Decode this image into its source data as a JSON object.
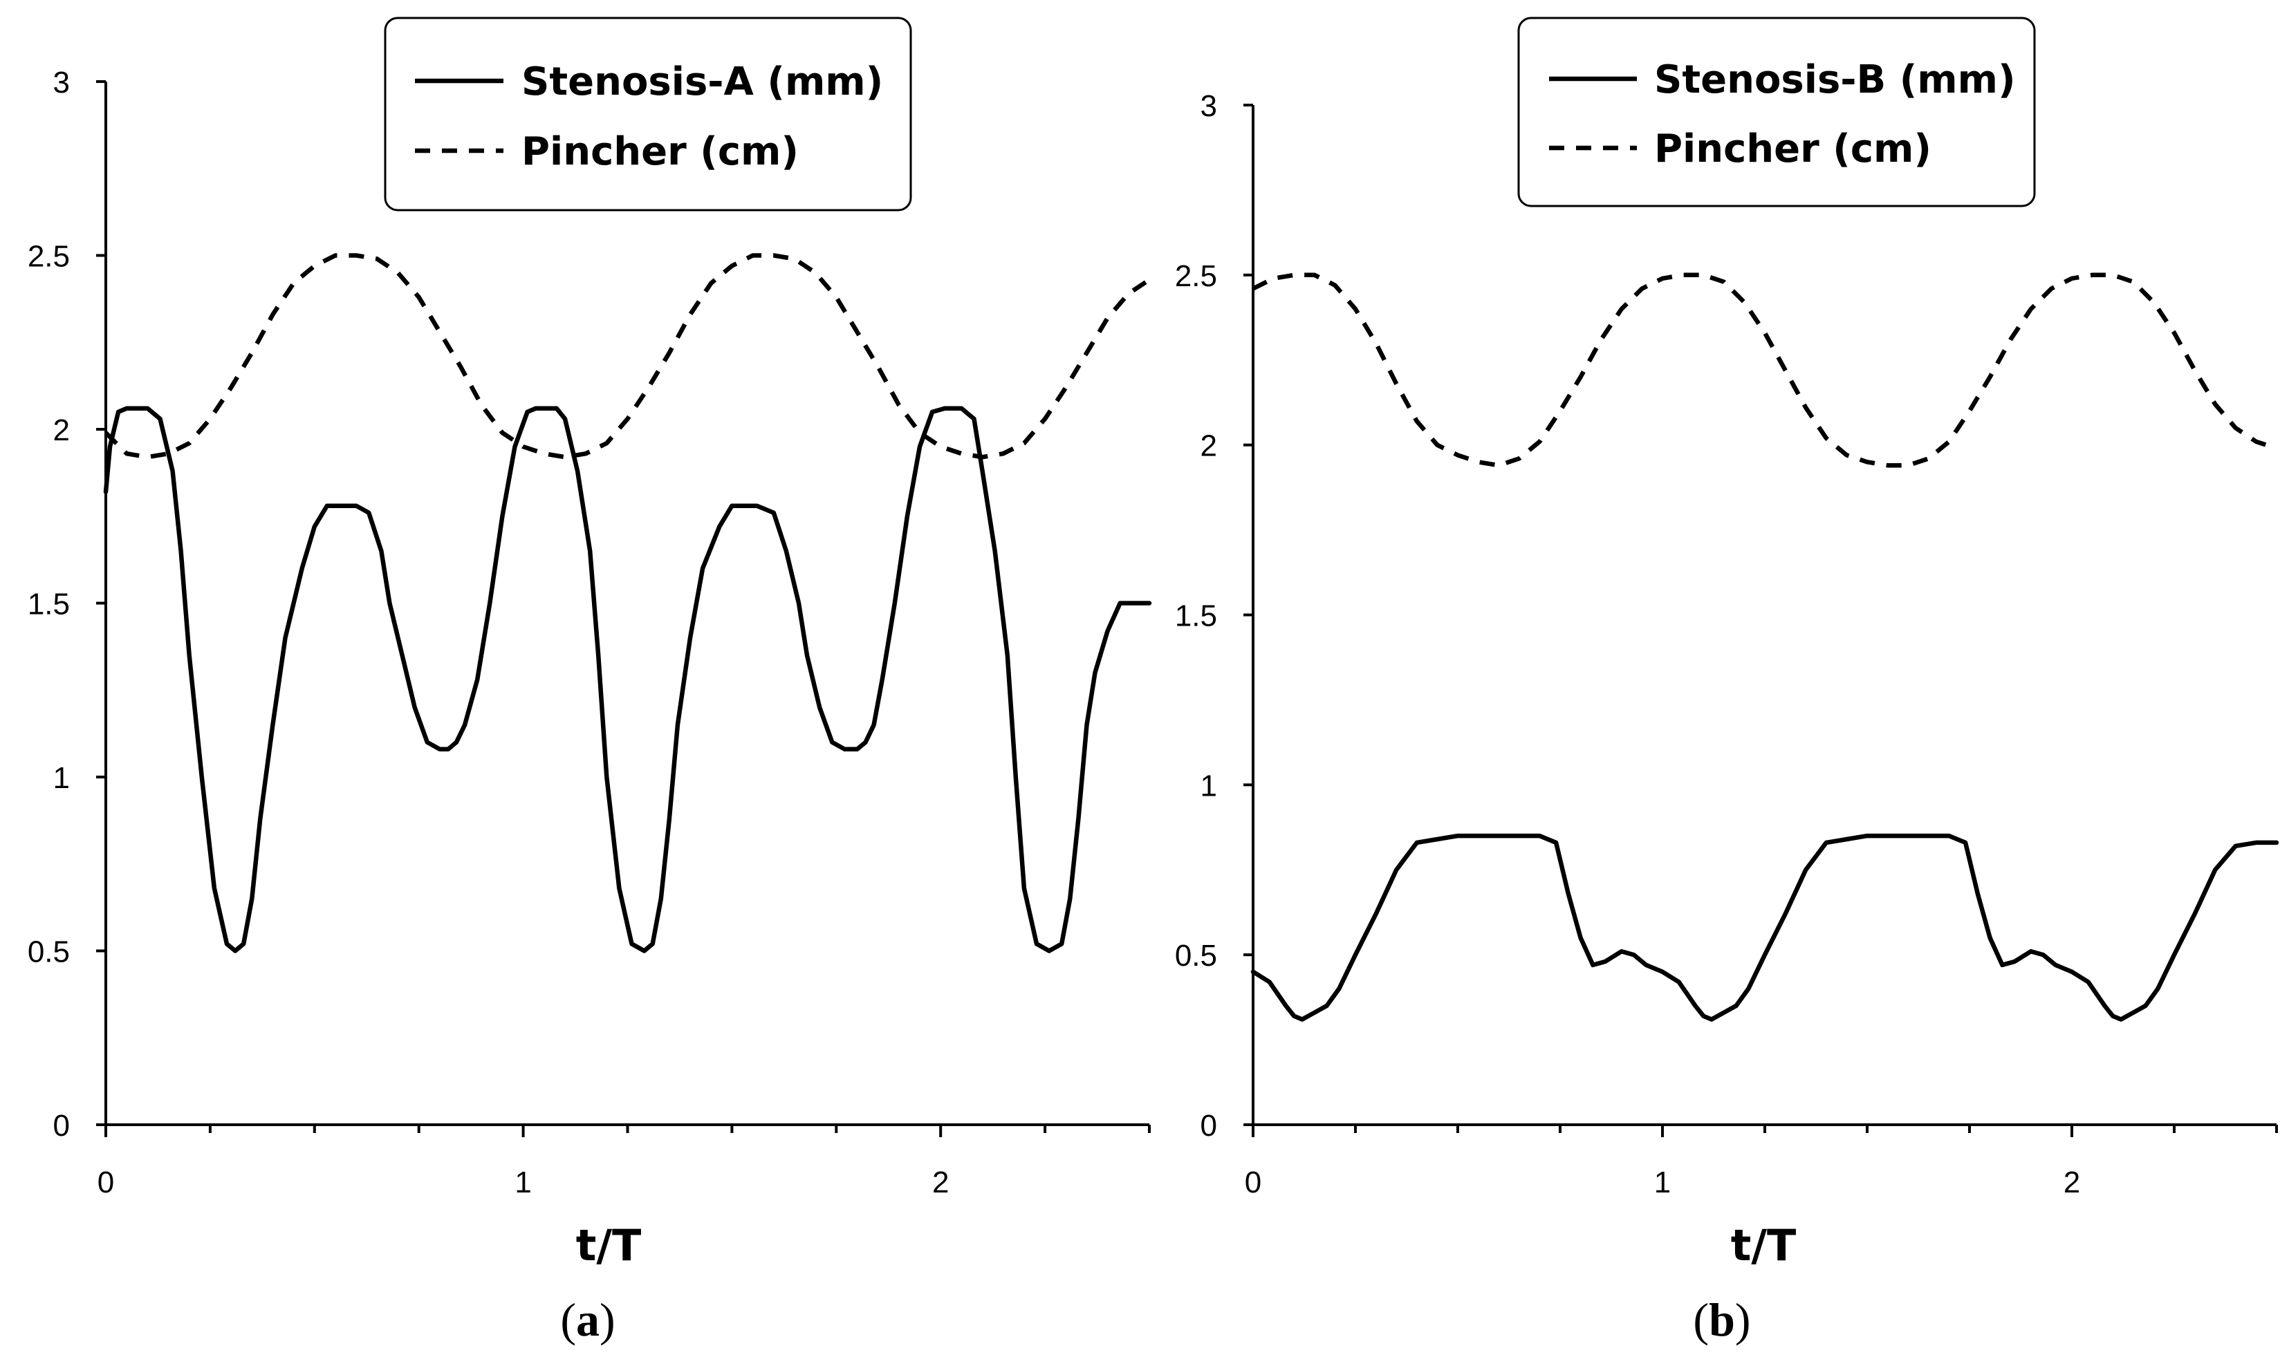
{
  "chart_data": [
    {
      "type": "line",
      "caption_letter": "a",
      "xlabel": "t/T",
      "ylabel": "",
      "xlim": [
        0,
        2.5
      ],
      "ylim": [
        0,
        3
      ],
      "x_ticks": [
        "0",
        "1",
        "2"
      ],
      "x_tick_values": [
        0,
        1,
        2
      ],
      "y_ticks": [
        "0",
        "0.5",
        "1",
        "1.5",
        "2",
        "2.5",
        "3"
      ],
      "y_tick_values": [
        0,
        0.5,
        1,
        1.5,
        2,
        2.5,
        3
      ],
      "legend_position": "top-right",
      "series": [
        {
          "name": "Stenosis-A (mm)",
          "style": "solid",
          "x": [
            0,
            0.01,
            0.03,
            0.05,
            0.08,
            0.1,
            0.13,
            0.16,
            0.18,
            0.2,
            0.23,
            0.26,
            0.29,
            0.31,
            0.33,
            0.35,
            0.37,
            0.4,
            0.43,
            0.47,
            0.5,
            0.53,
            0.56,
            0.6,
            0.63,
            0.66,
            0.68,
            0.71,
            0.74,
            0.77,
            0.8,
            0.82,
            0.84,
            0.86,
            0.89,
            0.92,
            0.95,
            0.98,
            1.01,
            1.03,
            1.05,
            1.08,
            1.1,
            1.13,
            1.16,
            1.18,
            1.2,
            1.23,
            1.26,
            1.29,
            1.31,
            1.33,
            1.35,
            1.37,
            1.4,
            1.43,
            1.47,
            1.5,
            1.53,
            1.56,
            1.6,
            1.63,
            1.66,
            1.68,
            1.71,
            1.74,
            1.77,
            1.8,
            1.82,
            1.84,
            1.86,
            1.89,
            1.92,
            1.95,
            1.98,
            2.01,
            2.03,
            2.05,
            2.08,
            2.1,
            2.13,
            2.16,
            2.18,
            2.2,
            2.23,
            2.26,
            2.29,
            2.31,
            2.33,
            2.35,
            2.37,
            2.4,
            2.43,
            2.47,
            2.5
          ],
          "y": [
            1.82,
            1.95,
            2.05,
            2.06,
            2.06,
            2.06,
            2.03,
            1.88,
            1.65,
            1.35,
            1.0,
            0.68,
            0.52,
            0.5,
            0.52,
            0.65,
            0.88,
            1.15,
            1.4,
            1.6,
            1.72,
            1.78,
            1.78,
            1.78,
            1.76,
            1.65,
            1.5,
            1.35,
            1.2,
            1.1,
            1.08,
            1.08,
            1.1,
            1.15,
            1.28,
            1.5,
            1.75,
            1.95,
            2.05,
            2.06,
            2.06,
            2.06,
            2.03,
            1.88,
            1.65,
            1.35,
            1.0,
            0.68,
            0.52,
            0.5,
            0.52,
            0.65,
            0.88,
            1.15,
            1.4,
            1.6,
            1.72,
            1.78,
            1.78,
            1.78,
            1.76,
            1.65,
            1.5,
            1.35,
            1.2,
            1.1,
            1.08,
            1.08,
            1.1,
            1.15,
            1.28,
            1.5,
            1.75,
            1.95,
            2.05,
            2.06,
            2.06,
            2.06,
            2.03,
            1.88,
            1.65,
            1.35,
            1.0,
            0.68,
            0.52,
            0.5,
            0.52,
            0.65,
            0.88,
            1.15,
            1.3,
            1.42,
            1.5,
            1.5,
            1.5
          ]
        },
        {
          "name": "Pincher (cm)",
          "style": "dashed",
          "x": [
            0,
            0.05,
            0.1,
            0.15,
            0.2,
            0.25,
            0.3,
            0.35,
            0.4,
            0.45,
            0.5,
            0.55,
            0.6,
            0.65,
            0.7,
            0.75,
            0.8,
            0.85,
            0.9,
            0.95,
            1.0,
            1.05,
            1.1,
            1.15,
            1.2,
            1.25,
            1.3,
            1.35,
            1.4,
            1.45,
            1.5,
            1.55,
            1.6,
            1.65,
            1.7,
            1.75,
            1.8,
            1.85,
            1.9,
            1.95,
            2.0,
            2.05,
            2.1,
            2.15,
            2.2,
            2.25,
            2.3,
            2.35,
            2.4,
            2.45,
            2.5
          ],
          "y": [
            1.99,
            1.93,
            1.92,
            1.93,
            1.96,
            2.03,
            2.12,
            2.22,
            2.33,
            2.42,
            2.47,
            2.5,
            2.5,
            2.49,
            2.45,
            2.38,
            2.28,
            2.18,
            2.07,
            1.99,
            1.95,
            1.93,
            1.92,
            1.93,
            1.96,
            2.03,
            2.12,
            2.22,
            2.33,
            2.42,
            2.47,
            2.5,
            2.5,
            2.49,
            2.45,
            2.38,
            2.28,
            2.18,
            2.07,
            1.99,
            1.95,
            1.93,
            1.92,
            1.93,
            1.96,
            2.03,
            2.12,
            2.22,
            2.32,
            2.39,
            2.43
          ]
        }
      ]
    },
    {
      "type": "line",
      "caption_letter": "b",
      "xlabel": "t/T",
      "ylabel": "",
      "xlim": [
        0,
        2.5
      ],
      "ylim": [
        0,
        3
      ],
      "x_ticks": [
        "0",
        "1",
        "2"
      ],
      "x_tick_values": [
        0,
        1,
        2
      ],
      "y_ticks": [
        "0",
        "0.5",
        "1",
        "1.5",
        "2",
        "2.5",
        "3"
      ],
      "y_tick_values": [
        0,
        0.5,
        1,
        1.5,
        2,
        2.5,
        3
      ],
      "legend_position": "top-right",
      "series": [
        {
          "name": "Stenosis-B (mm)",
          "style": "solid",
          "x": [
            0,
            0.04,
            0.08,
            0.1,
            0.12,
            0.15,
            0.18,
            0.21,
            0.25,
            0.3,
            0.35,
            0.4,
            0.45,
            0.5,
            0.55,
            0.6,
            0.65,
            0.7,
            0.74,
            0.77,
            0.8,
            0.83,
            0.86,
            0.9,
            0.93,
            0.96,
            1.0,
            1.04,
            1.08,
            1.1,
            1.12,
            1.15,
            1.18,
            1.21,
            1.25,
            1.3,
            1.35,
            1.4,
            1.45,
            1.5,
            1.55,
            1.6,
            1.65,
            1.7,
            1.74,
            1.77,
            1.8,
            1.83,
            1.86,
            1.9,
            1.93,
            1.96,
            2.0,
            2.04,
            2.08,
            2.1,
            2.12,
            2.15,
            2.18,
            2.21,
            2.25,
            2.3,
            2.35,
            2.4,
            2.45,
            2.5
          ],
          "y": [
            0.45,
            0.42,
            0.35,
            0.32,
            0.31,
            0.33,
            0.35,
            0.4,
            0.5,
            0.62,
            0.75,
            0.83,
            0.84,
            0.85,
            0.85,
            0.85,
            0.85,
            0.85,
            0.83,
            0.68,
            0.55,
            0.47,
            0.48,
            0.51,
            0.5,
            0.47,
            0.45,
            0.42,
            0.35,
            0.32,
            0.31,
            0.33,
            0.35,
            0.4,
            0.5,
            0.62,
            0.75,
            0.83,
            0.84,
            0.85,
            0.85,
            0.85,
            0.85,
            0.85,
            0.83,
            0.68,
            0.55,
            0.47,
            0.48,
            0.51,
            0.5,
            0.47,
            0.45,
            0.42,
            0.35,
            0.32,
            0.31,
            0.33,
            0.35,
            0.4,
            0.5,
            0.62,
            0.75,
            0.82,
            0.83,
            0.83
          ]
        },
        {
          "name": "Pincher (cm)",
          "style": "dashed",
          "x": [
            0,
            0.05,
            0.1,
            0.15,
            0.2,
            0.25,
            0.3,
            0.35,
            0.4,
            0.45,
            0.5,
            0.55,
            0.6,
            0.65,
            0.7,
            0.75,
            0.8,
            0.85,
            0.9,
            0.95,
            1.0,
            1.05,
            1.1,
            1.15,
            1.2,
            1.25,
            1.3,
            1.35,
            1.4,
            1.45,
            1.5,
            1.55,
            1.6,
            1.65,
            1.7,
            1.75,
            1.8,
            1.85,
            1.9,
            1.95,
            2.0,
            2.05,
            2.1,
            2.15,
            2.2,
            2.25,
            2.3,
            2.35,
            2.4,
            2.45,
            2.5
          ],
          "y": [
            2.46,
            2.49,
            2.5,
            2.5,
            2.47,
            2.4,
            2.3,
            2.18,
            2.07,
            2.0,
            1.97,
            1.95,
            1.94,
            1.96,
            2.01,
            2.1,
            2.2,
            2.31,
            2.4,
            2.46,
            2.49,
            2.5,
            2.5,
            2.48,
            2.42,
            2.33,
            2.22,
            2.11,
            2.02,
            1.97,
            1.95,
            1.94,
            1.94,
            1.96,
            2.01,
            2.1,
            2.2,
            2.31,
            2.4,
            2.46,
            2.49,
            2.5,
            2.5,
            2.48,
            2.42,
            2.33,
            2.22,
            2.12,
            2.05,
            2.01,
            1.99
          ]
        }
      ]
    }
  ]
}
